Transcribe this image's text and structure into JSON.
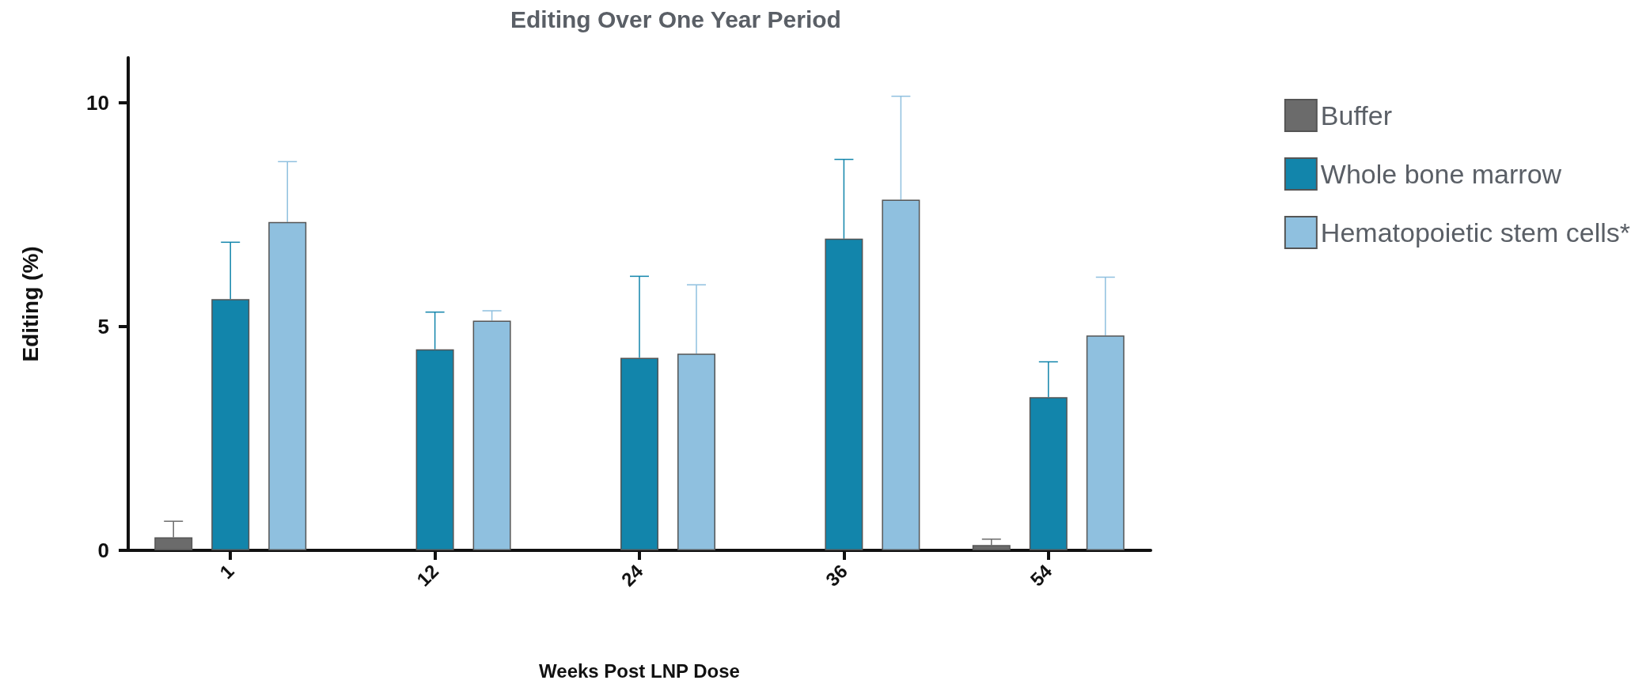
{
  "chart_data": {
    "type": "bar",
    "title": "Editing Over One Year Period",
    "xlabel": "Weeks Post LNP Dose",
    "ylabel": "Editing (%)",
    "categories": [
      "1",
      "12",
      "24",
      "36",
      "54"
    ],
    "series": [
      {
        "name": "Buffer",
        "color": "#6b6b6b",
        "values": [
          0.29,
          null,
          null,
          null,
          0.12
        ],
        "errors": [
          [
            0.29,
            0.65
          ],
          null,
          null,
          null,
          [
            0.12,
            0.25
          ]
        ]
      },
      {
        "name": "Whole bone marrow",
        "color": "#1285ab",
        "values": [
          5.61,
          4.49,
          4.3,
          6.96,
          3.42
        ],
        "errors": [
          [
            5.61,
            6.88
          ],
          [
            4.49,
            5.32
          ],
          [
            4.3,
            6.12
          ],
          [
            6.96,
            8.73
          ],
          [
            3.42,
            4.21
          ]
        ]
      },
      {
        "name": "Hematopoietic stem cells*",
        "color": "#8fc0df",
        "values": [
          7.33,
          5.13,
          4.39,
          7.83,
          4.8
        ],
        "errors": [
          [
            7.33,
            8.68
          ],
          [
            5.13,
            5.35
          ],
          [
            4.39,
            5.93
          ],
          [
            7.83,
            10.14
          ],
          [
            4.8,
            6.1
          ]
        ]
      }
    ],
    "ylim": [
      0,
      11
    ],
    "yticks": [
      0,
      5,
      10
    ],
    "grid": false,
    "legend": "right"
  }
}
